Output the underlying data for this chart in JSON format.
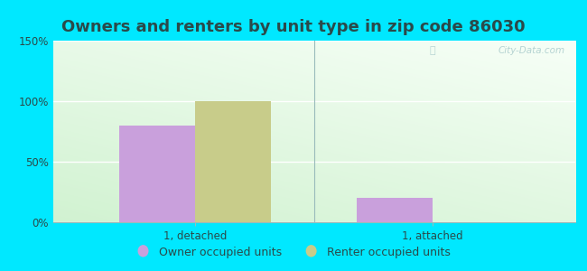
{
  "title": "Owners and renters by unit type in zip code 86030",
  "categories": [
    "1, detached",
    "1, attached"
  ],
  "owner_values": [
    80,
    20
  ],
  "renter_values": [
    100,
    0
  ],
  "owner_color": "#c9a0dc",
  "renter_color": "#c8cc8a",
  "ylim": [
    0,
    150
  ],
  "yticks": [
    0,
    50,
    100,
    150
  ],
  "ytick_labels": [
    "0%",
    "50%",
    "100%",
    "150%"
  ],
  "background_outer": "#00e8ff",
  "bar_width": 0.32,
  "legend_owner": "Owner occupied units",
  "legend_renter": "Renter occupied units",
  "watermark": "City-Data.com",
  "title_fontsize": 13,
  "tick_fontsize": 8.5,
  "legend_fontsize": 9,
  "text_color": "#2a4a4a"
}
